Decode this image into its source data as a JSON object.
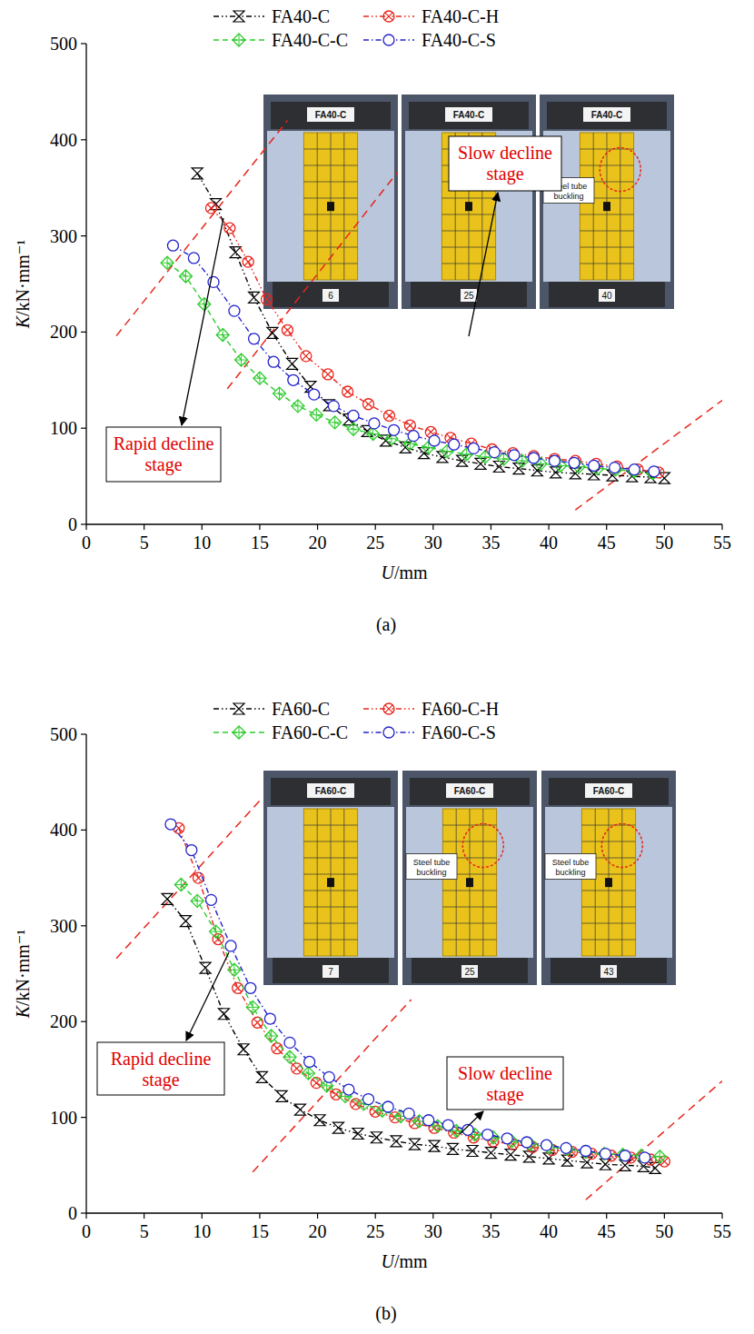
{
  "chart_data": [
    {
      "type": "line",
      "caption": "(a)",
      "xlabel": "U/mm",
      "ylabel": "K/kN·mm⁻¹",
      "xlim": [
        0,
        55
      ],
      "ylim": [
        0,
        500
      ],
      "xticks": [
        0,
        5,
        10,
        15,
        20,
        25,
        30,
        35,
        40,
        45,
        50,
        55
      ],
      "yticks": [
        0,
        100,
        200,
        300,
        400,
        500
      ],
      "legend": "top",
      "series": [
        {
          "name": "FA40-C",
          "color": "#000000",
          "marker": "bowtie",
          "line_style": "dash-dot-dot",
          "x": [
            9.6,
            11.2,
            12.9,
            14.5,
            16.1,
            17.8,
            19.4,
            21,
            22.7,
            24.3,
            25.9,
            27.6,
            29.2,
            30.8,
            32.5,
            34.1,
            35.7,
            37.4,
            39,
            40.6,
            42.3,
            43.9,
            45.5,
            47.2,
            48.8,
            50
          ],
          "values": [
            365,
            333,
            283,
            236,
            199,
            167,
            143,
            124,
            109,
            97,
            87,
            80,
            74,
            70,
            66,
            63,
            60,
            58,
            56,
            54,
            53,
            52,
            51,
            50,
            49,
            48
          ]
        },
        {
          "name": "FA40-C-H",
          "color": "#e8261c",
          "marker": "circle-x",
          "line_style": "dash-dot-dot",
          "x": [
            10.8,
            12.4,
            14,
            15.6,
            17.4,
            19,
            20.9,
            22.6,
            24.4,
            26.2,
            28,
            29.8,
            31.5,
            33.3,
            35.1,
            36.9,
            38.7,
            40.5,
            42.3,
            44.1,
            45.9,
            47.7,
            49.5
          ],
          "values": [
            329,
            308,
            273,
            234,
            202,
            175,
            156,
            138,
            125,
            113,
            103,
            96,
            90,
            84,
            78,
            74,
            71,
            68,
            66,
            63,
            60,
            57,
            54
          ]
        },
        {
          "name": "FA40-C-C",
          "color": "#2ecc2e",
          "marker": "diamond-plus",
          "line_style": "dashed",
          "x": [
            7,
            8.6,
            10.2,
            11.8,
            13.4,
            15,
            16.7,
            18.3,
            19.9,
            21.5,
            23.1,
            24.8,
            26.4,
            28,
            29.6,
            31.2,
            32.9,
            34.5,
            36.1,
            37.7,
            39.3,
            41,
            42.6,
            44.2,
            45.8,
            47.4,
            49
          ],
          "values": [
            272,
            258,
            229,
            197,
            171,
            152,
            136,
            123,
            114,
            106,
            99,
            94,
            89,
            84,
            80,
            76,
            73,
            70,
            68,
            66,
            63,
            61,
            60,
            58,
            57,
            55,
            53
          ]
        },
        {
          "name": "FA40-C-S",
          "color": "#2323cc",
          "marker": "circle",
          "line_style": "dash-dot",
          "x": [
            7.5,
            9.3,
            11,
            12.8,
            14.5,
            16.2,
            17.9,
            19.7,
            21.4,
            23.1,
            24.9,
            26.6,
            28.3,
            30.1,
            31.8,
            33.5,
            35.3,
            37,
            38.7,
            40.5,
            42.2,
            43.9,
            45.7,
            47.4,
            49.1
          ],
          "values": [
            290,
            277,
            252,
            222,
            193,
            169,
            150,
            135,
            123,
            113,
            105,
            98,
            92,
            87,
            83,
            79,
            75,
            72,
            69,
            66,
            64,
            61,
            59,
            57,
            55
          ]
        }
      ],
      "stage_lines": [
        [
          2.6,
          196,
          17.4,
          420
        ],
        [
          12.2,
          141,
          26.9,
          366
        ],
        [
          42.3,
          15,
          55,
          129
        ]
      ],
      "annotations": [
        "Rapid decline stage",
        "Slow decline stage"
      ],
      "insets": [
        {
          "label": "FA40-C",
          "number": 6
        },
        {
          "label": "FA40-C",
          "number": 25
        },
        {
          "label": "FA40-C",
          "number": 40,
          "annotation": "Steel tube buckling"
        }
      ]
    },
    {
      "type": "line",
      "caption": "(b)",
      "xlabel": "U/mm",
      "ylabel": "K/kN·mm⁻¹",
      "xlim": [
        0,
        55
      ],
      "ylim": [
        0,
        500
      ],
      "xticks": [
        0,
        5,
        10,
        15,
        20,
        25,
        30,
        35,
        40,
        45,
        50,
        55
      ],
      "yticks": [
        0,
        100,
        200,
        300,
        400,
        500
      ],
      "legend": "top",
      "series": [
        {
          "name": "FA60-C",
          "color": "#000000",
          "marker": "bowtie",
          "line_style": "dash-dot-dot",
          "x": [
            7,
            8.6,
            10.3,
            11.9,
            13.6,
            15.2,
            16.9,
            18.5,
            20.2,
            21.8,
            23.5,
            25.1,
            26.8,
            28.4,
            30.1,
            31.7,
            33.4,
            35,
            36.7,
            38.3,
            40,
            41.6,
            43.3,
            44.9,
            46.6,
            48.2,
            49.2
          ],
          "values": [
            328,
            305,
            256,
            208,
            171,
            142,
            122,
            108,
            97,
            89,
            83,
            79,
            75,
            72,
            70,
            67,
            65,
            63,
            61,
            59,
            57,
            55,
            53,
            51,
            50,
            49,
            47
          ]
        },
        {
          "name": "FA60-C-H",
          "color": "#e8261c",
          "marker": "circle-x",
          "line_style": "dash-dot-dot",
          "x": [
            8,
            9.7,
            11.4,
            13.1,
            14.8,
            16.5,
            18.2,
            19.9,
            21.6,
            23.3,
            25,
            26.7,
            28.4,
            30.1,
            31.8,
            33.5,
            35.2,
            36.9,
            38.6,
            40.3,
            42,
            43.7,
            45.4,
            47.1,
            48.8,
            50
          ],
          "values": [
            402,
            350,
            286,
            235,
            199,
            172,
            151,
            136,
            124,
            114,
            106,
            100,
            94,
            89,
            84,
            79,
            75,
            72,
            69,
            66,
            64,
            62,
            60,
            58,
            56,
            54
          ]
        },
        {
          "name": "FA60-C-C",
          "color": "#2ecc2e",
          "marker": "diamond-plus",
          "line_style": "dashed",
          "x": [
            8.2,
            9.6,
            11.2,
            12.8,
            14.4,
            16,
            17.6,
            19.2,
            20.8,
            22.4,
            24,
            25.6,
            27.2,
            28.8,
            30.4,
            32,
            33.6,
            35.2,
            36.8,
            38.4,
            40,
            41.6,
            43.2,
            44.8,
            46.4,
            48,
            49.6
          ],
          "values": [
            343,
            326,
            294,
            254,
            215,
            185,
            163,
            146,
            133,
            122,
            114,
            107,
            101,
            96,
            91,
            86,
            82,
            79,
            75,
            72,
            69,
            67,
            64,
            62,
            61,
            60,
            59
          ]
        },
        {
          "name": "FA60-C-S",
          "color": "#2323cc",
          "marker": "circle",
          "line_style": "dash-dot",
          "x": [
            7.3,
            9.1,
            10.8,
            12.5,
            14.2,
            15.9,
            17.6,
            19.3,
            21,
            22.7,
            24.4,
            26.1,
            27.9,
            29.6,
            31.3,
            33,
            34.7,
            36.4,
            38.1,
            39.8,
            41.5,
            43.2,
            44.9,
            46.6,
            48.3
          ],
          "values": [
            406,
            379,
            327,
            279,
            235,
            203,
            178,
            158,
            142,
            129,
            119,
            111,
            104,
            97,
            92,
            87,
            82,
            78,
            74,
            71,
            68,
            65,
            62,
            60,
            58
          ]
        }
      ],
      "stage_lines": [
        [
          2.6,
          266,
          15.1,
          432
        ],
        [
          14.4,
          43,
          28.1,
          223
        ],
        [
          43.2,
          14,
          55,
          138
        ]
      ],
      "annotations": [
        "Rapid decline stage",
        "Slow decline stage"
      ],
      "insets": [
        {
          "label": "FA60-C",
          "number": 7
        },
        {
          "label": "FA60-C",
          "number": 25,
          "annotation": "Steel tube buckling"
        },
        {
          "label": "FA60-C",
          "number": 43,
          "annotation": "Steel tube buckling"
        }
      ]
    }
  ]
}
